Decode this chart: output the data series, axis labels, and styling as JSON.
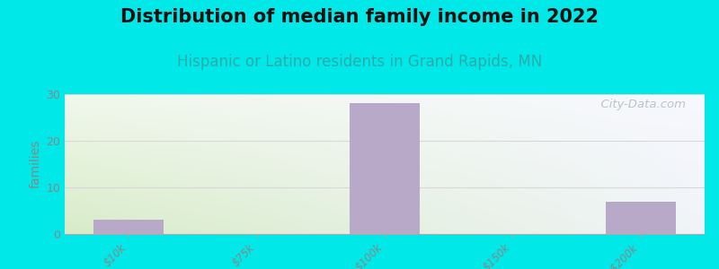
{
  "title": "Distribution of median family income in 2022",
  "subtitle": "Hispanic or Latino residents in Grand Rapids, MN",
  "categories": [
    "$10k",
    "$75k",
    "$100k",
    "$150k",
    ">$200k"
  ],
  "values": [
    3,
    0,
    28,
    0,
    7
  ],
  "bar_color": "#b8a9c9",
  "background_outer": "#00e8e8",
  "background_corner_bl": "#d8ecc8",
  "background_corner_tr": "#f0f4f8",
  "ylabel": "families",
  "ylim": [
    0,
    30
  ],
  "yticks": [
    0,
    10,
    20,
    30
  ],
  "grid_color": "#d8d8d8",
  "title_fontsize": 15,
  "subtitle_fontsize": 12,
  "subtitle_color": "#2aacac",
  "watermark_text": "  City-Data.com",
  "watermark_color": "#b0bcbc",
  "tick_label_color": "#888888",
  "bar_width": 0.55
}
